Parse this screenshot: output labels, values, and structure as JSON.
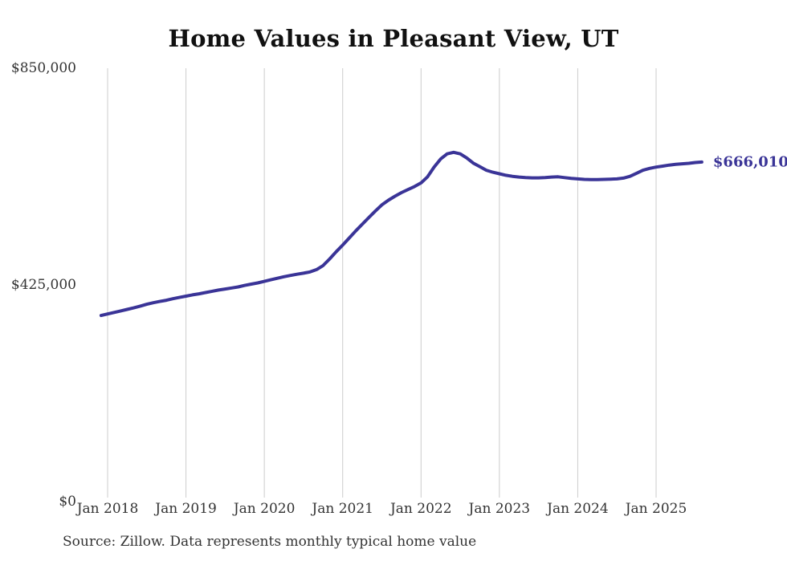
{
  "source_note": "Source: Zillow. Data represents monthly typical home value",
  "colors": {
    "background": "#ffffff",
    "line": "#3a3497",
    "grid": "#cccccc",
    "axis_text": "#333333",
    "title_text": "#111111",
    "annotation": "#3a3497"
  },
  "chart_data": {
    "type": "line",
    "title": "Home Values in Pleasant View, UT",
    "xlabel": "",
    "ylabel": "",
    "ylim": [
      0,
      850000
    ],
    "grid": "vertical-only",
    "legend": "none",
    "y_tick_values": [
      0,
      425000,
      850000
    ],
    "y_tick_labels": [
      "$0",
      "$425,000",
      "$850,000"
    ],
    "x_ticks": [
      "2018-01",
      "2019-01",
      "2020-01",
      "2021-01",
      "2022-01",
      "2023-01",
      "2024-01",
      "2025-01"
    ],
    "x_tick_labels": [
      "Jan 2018",
      "Jan 2019",
      "Jan 2020",
      "Jan 2021",
      "Jan 2022",
      "Jan 2023",
      "Jan 2024",
      "Jan 2025"
    ],
    "annotation": "$666,010",
    "final_value": 666010,
    "series": [
      {
        "name": "Monthly typical home value",
        "x": [
          "2017-12",
          "2018-01",
          "2018-02",
          "2018-03",
          "2018-04",
          "2018-05",
          "2018-06",
          "2018-07",
          "2018-08",
          "2018-09",
          "2018-10",
          "2018-11",
          "2018-12",
          "2019-01",
          "2019-02",
          "2019-03",
          "2019-04",
          "2019-05",
          "2019-06",
          "2019-07",
          "2019-08",
          "2019-09",
          "2019-10",
          "2019-11",
          "2019-12",
          "2020-01",
          "2020-02",
          "2020-03",
          "2020-04",
          "2020-05",
          "2020-06",
          "2020-07",
          "2020-08",
          "2020-09",
          "2020-10",
          "2020-11",
          "2020-12",
          "2021-01",
          "2021-02",
          "2021-03",
          "2021-04",
          "2021-05",
          "2021-06",
          "2021-07",
          "2021-08",
          "2021-09",
          "2021-10",
          "2021-11",
          "2021-12",
          "2022-01",
          "2022-02",
          "2022-03",
          "2022-04",
          "2022-05",
          "2022-06",
          "2022-07",
          "2022-08",
          "2022-09",
          "2022-10",
          "2022-11",
          "2022-12",
          "2023-01",
          "2023-02",
          "2023-03",
          "2023-04",
          "2023-05",
          "2023-06",
          "2023-07",
          "2023-08",
          "2023-09",
          "2023-10",
          "2023-11",
          "2023-12",
          "2024-01",
          "2024-02",
          "2024-03",
          "2024-04",
          "2024-05",
          "2024-06",
          "2024-07",
          "2024-08",
          "2024-09",
          "2024-10",
          "2024-11",
          "2024-12",
          "2025-01",
          "2025-02",
          "2025-03",
          "2025-04",
          "2025-05",
          "2025-06",
          "2025-07",
          "2025-08"
        ],
        "values": [
          365000,
          368000,
          371000,
          374000,
          377000,
          380000,
          383500,
          387000,
          390000,
          392500,
          395000,
          398000,
          400500,
          403000,
          405500,
          407500,
          410000,
          412500,
          415000,
          417000,
          419000,
          421000,
          424000,
          426500,
          429000,
          432000,
          435000,
          438000,
          441000,
          443500,
          446000,
          448000,
          450500,
          455000,
          463000,
          476000,
          490000,
          503000,
          517000,
          531000,
          544000,
          557000,
          570000,
          582000,
          591000,
          599000,
          606000,
          612000,
          618000,
          625000,
          637000,
          656000,
          672000,
          682000,
          685000,
          682000,
          674000,
          664000,
          657000,
          650000,
          646000,
          643000,
          640000,
          638000,
          636500,
          635500,
          635000,
          635000,
          635500,
          636500,
          637000,
          635500,
          634000,
          633000,
          632000,
          631500,
          631500,
          632000,
          632500,
          633000,
          634500,
          638000,
          644000,
          650000,
          653500,
          656000,
          658000,
          660000,
          661500,
          662500,
          663500,
          665000,
          666010
        ]
      }
    ]
  }
}
